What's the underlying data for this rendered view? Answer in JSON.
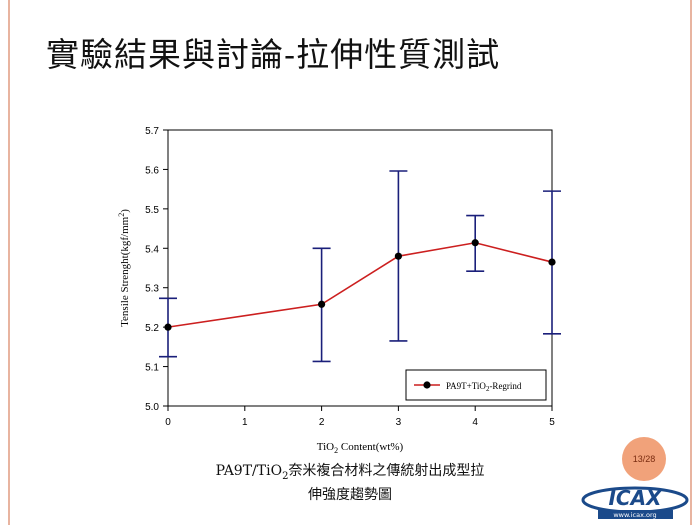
{
  "slide": {
    "title": "實驗結果與討論-拉伸性質測試",
    "caption_line1": "PA9T/TiO2奈米複合材料之傳統射出成型拉",
    "caption_line2": "伸強度趨勢圖",
    "page_number": "13/28",
    "logo_text": "ICAX",
    "logo_url": "www.icax.org",
    "accent_color": "#f1a27a"
  },
  "chart_data": {
    "type": "line",
    "xlabel": "TiO2 Content(wt%)",
    "ylabel": "Tensile Strenght(kgf/mm2)",
    "xlim": [
      0,
      5
    ],
    "ylim": [
      5.0,
      5.7
    ],
    "x_ticks": [
      0,
      1,
      2,
      3,
      4,
      5
    ],
    "y_ticks": [
      5.0,
      5.1,
      5.2,
      5.3,
      5.4,
      5.5,
      5.6,
      5.7
    ],
    "legend_position": "bottom-right",
    "series": [
      {
        "name": "PA9T+TiO2-Regrind",
        "color": "#cc1f1f",
        "error_bar_color": "#1a1f7a",
        "x": [
          0,
          2,
          3,
          4,
          5
        ],
        "y": [
          5.2,
          5.258,
          5.38,
          5.414,
          5.365
        ],
        "err_low": [
          5.125,
          5.113,
          5.165,
          5.342,
          5.183
        ],
        "err_high": [
          5.273,
          5.4,
          5.596,
          5.483,
          5.545
        ]
      }
    ]
  }
}
